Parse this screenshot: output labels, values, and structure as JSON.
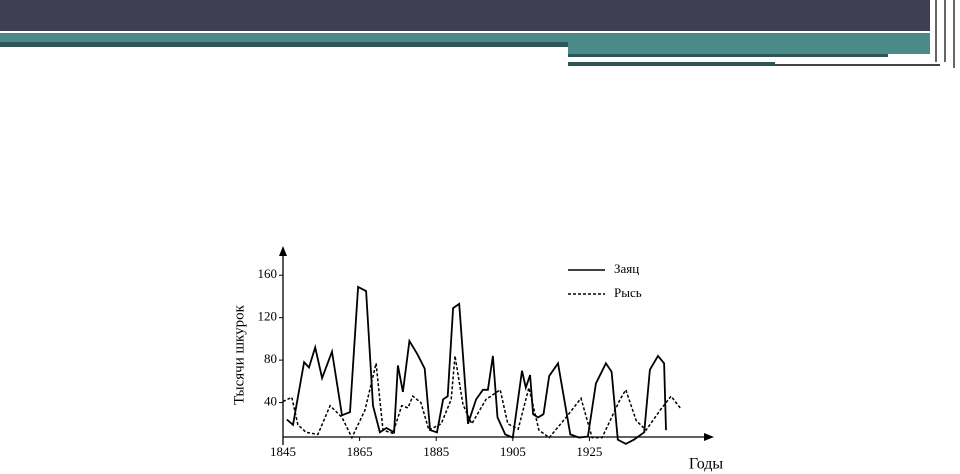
{
  "chart_data": {
    "type": "line",
    "ylabel": "Тысячи шкурок",
    "xlabel": "Годы",
    "xlim": [
      1845,
      1957
    ],
    "ylim": [
      0,
      180
    ],
    "xticks": [
      1845,
      1865,
      1885,
      1905,
      1925
    ],
    "yticks": [
      40,
      80,
      120,
      160
    ],
    "series": [
      {
        "name": "Заяц",
        "color": "#000000",
        "line_style": "solid",
        "x": [
          1846,
          1847.6,
          1850.5,
          1851.8,
          1853.4,
          1855.2,
          1857.8,
          1860.4,
          1862.5,
          1864.6,
          1866.7,
          1868.5,
          1870.3,
          1872,
          1874,
          1875,
          1876.3,
          1878,
          1880,
          1882,
          1883.4,
          1885.2,
          1886.8,
          1888,
          1889.4,
          1891,
          1893.3,
          1895.4,
          1897.2,
          1898.5,
          1899.8,
          1901,
          1903,
          1905,
          1907.4,
          1908.4,
          1909.5,
          1910.3,
          1911.6,
          1913,
          1914.5,
          1916.8,
          1920,
          1922.3,
          1924.6,
          1926.7,
          1929.3,
          1930.8,
          1932.4,
          1934.5,
          1936.6,
          1939.3,
          1940.8,
          1942.9,
          1944.5,
          1945
        ],
        "values": [
          24,
          19,
          78,
          73,
          92,
          63,
          88,
          28,
          31,
          149,
          145,
          37,
          12,
          16,
          12,
          75,
          50,
          98,
          86,
          72,
          14,
          12,
          43,
          46,
          129,
          133,
          20,
          43,
          52,
          52,
          84,
          26,
          10,
          7,
          70,
          54,
          66,
          29,
          26,
          29,
          65,
          77,
          10,
          7,
          8,
          58,
          77,
          69,
          5,
          1,
          5,
          12,
          71,
          84,
          77,
          14
        ]
      },
      {
        "name": "Рысь",
        "color": "#000000",
        "line_style": "dashed",
        "x": [
          1845,
          1847.3,
          1848.9,
          1851,
          1854.1,
          1857.3,
          1860.4,
          1863,
          1866.4,
          1869.3,
          1871.1,
          1873.7,
          1876,
          1877.6,
          1878.9,
          1881,
          1883.1,
          1886.3,
          1888.9,
          1889.9,
          1892,
          1894.3,
          1898,
          1901.7,
          1903.7,
          1906.4,
          1909.2,
          1911.8,
          1914.5,
          1918.9,
          1922.8,
          1925.7,
          1928.3,
          1933,
          1934.5,
          1937.2,
          1939.8,
          1943.5,
          1946.3,
          1948.7
        ],
        "values": [
          41,
          45,
          19,
          12,
          10,
          37,
          26,
          7,
          33,
          77,
          14,
          11,
          37,
          35,
          46,
          40,
          14,
          20,
          43,
          84,
          38,
          20,
          43,
          52,
          20,
          15,
          54,
          14,
          7,
          26,
          44,
          7,
          7,
          43,
          52,
          23,
          14,
          33,
          46,
          35
        ]
      }
    ]
  }
}
